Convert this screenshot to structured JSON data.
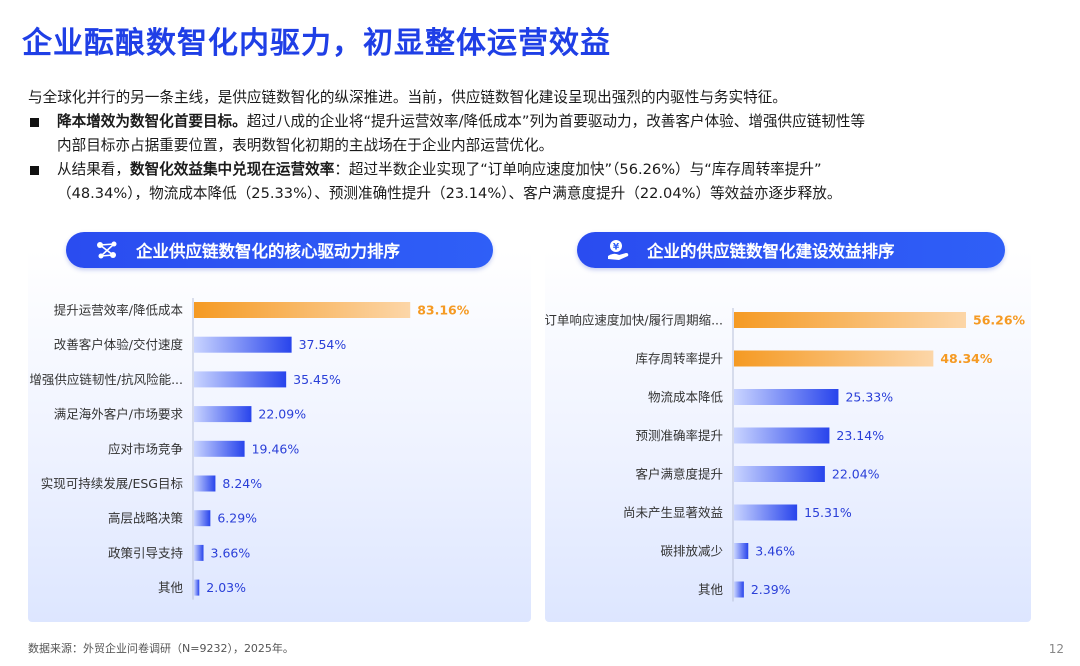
{
  "title": "企业酝酿数智化内驱力，初显整体运营效益",
  "intro": {
    "line1": "与全球化并行的另一条主线，是供应链数智化的纵深推进。当前，供应链数智化建设呈现出强烈的内驱性与务实特征。",
    "b1_bold": "降本增效为数智化首要目标。",
    "b1_text1": "超过八成的企业将“提升运营效率/降低成本”列为首要驱动力，改善客户体验、增强供应链韧性等",
    "b1_text2": "内部目标亦占据重要位置，表明数智化初期的主战场在于企业内部运营优化。",
    "b2_pre": "从结果看，",
    "b2_bold": "数智化效益集中兑现在运营效率",
    "b2_text1": "：超过半数企业实现了“订单响应速度加快”（56.26%）与“库存周转率提升”",
    "b2_text2": "（48.34%），物流成本降低（25.33%）、预测准确性提升（23.14%）、客户满意度提升（22.04%）等效益亦逐步释放。"
  },
  "left_panel": {
    "header": "企业供应链数智化的核心驱动力排序",
    "icon": "network-nodes-icon"
  },
  "right_panel": {
    "header": "企业的供应链数智化建设效益排序",
    "icon": "money-hand-icon"
  },
  "colors": {
    "title": "#1f3fe6",
    "accent_orange": "#f59a23",
    "bar_blue": "#2844ec"
  },
  "chart_data": [
    {
      "type": "bar",
      "orientation": "horizontal",
      "title": "企业供应链数智化的核心驱动力排序",
      "categories": [
        "提升运营效率/降低成本",
        "改善客户体验/交付速度",
        "增强供应链韧性/抗风险能...",
        "满足海外客户/市场要求",
        "应对市场竞争",
        "实现可持续发展/ESG目标",
        "高层战略决策",
        "政策引导支持",
        "其他"
      ],
      "values": [
        83.16,
        37.54,
        35.45,
        22.09,
        19.46,
        8.24,
        6.29,
        3.66,
        2.03
      ],
      "labels": [
        "83.16%",
        "37.54%",
        "35.45%",
        "22.09%",
        "19.46%",
        "8.24%",
        "6.29%",
        "3.66%",
        "2.03%"
      ],
      "highlight": [
        0
      ],
      "xlim": [
        0,
        100
      ]
    },
    {
      "type": "bar",
      "orientation": "horizontal",
      "title": "企业的供应链数智化建设效益排序",
      "categories": [
        "订单响应速度加快/履行周期缩...",
        "库存周转率提升",
        "物流成本降低",
        "预测准确率提升",
        "客户满意度提升",
        "尚未产生显著效益",
        "碳排放减少",
        "其他"
      ],
      "values": [
        56.26,
        48.34,
        25.33,
        23.14,
        22.04,
        15.31,
        3.46,
        2.39
      ],
      "labels": [
        "56.26%",
        "48.34%",
        "25.33%",
        "23.14%",
        "22.04%",
        "15.31%",
        "3.46%",
        "2.39%"
      ],
      "highlight": [
        0,
        1
      ],
      "xlim": [
        0,
        56.26
      ]
    }
  ],
  "footer": "数据来源：外贸企业问卷调研（N=9232），2025年。",
  "page_number": "12"
}
